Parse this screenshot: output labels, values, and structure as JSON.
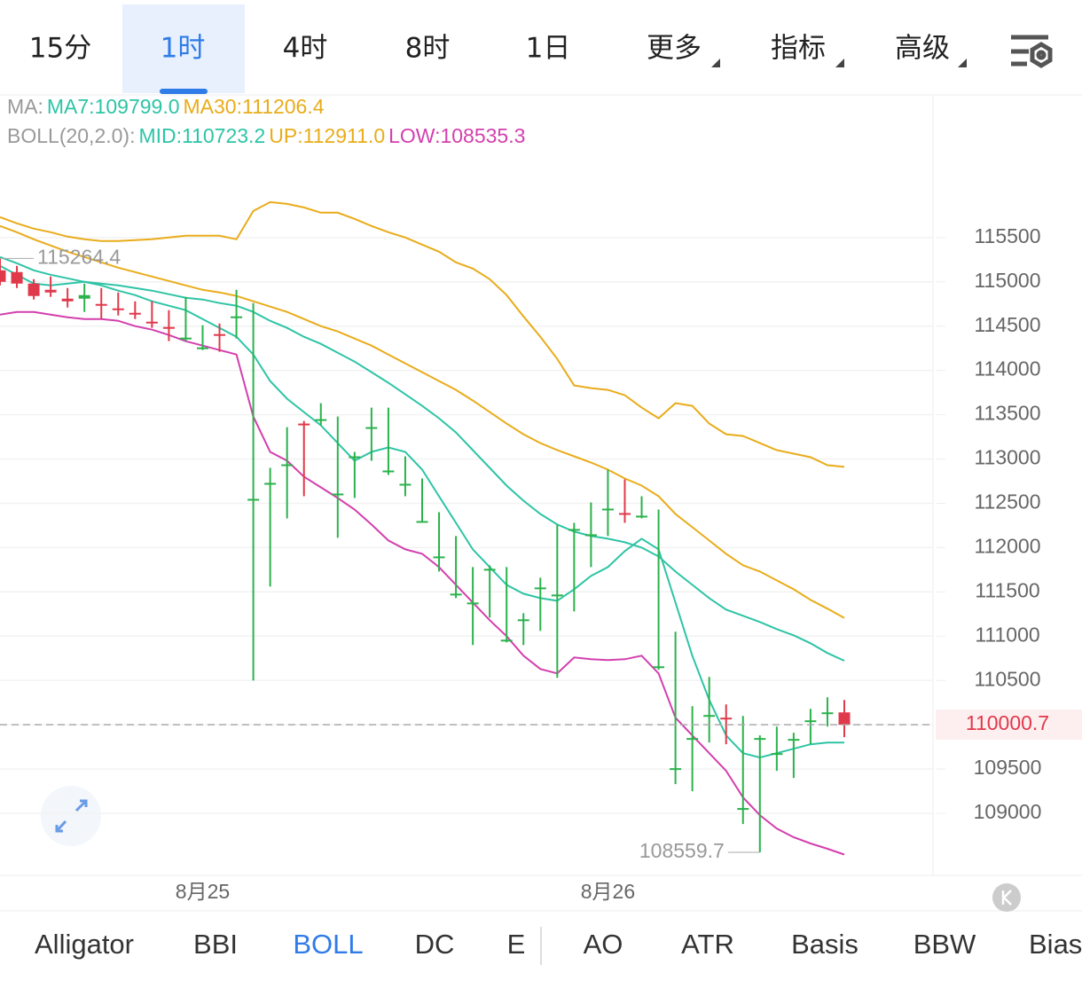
{
  "tabs": [
    "15分",
    "1时",
    "4时",
    "8时",
    "1日",
    "更多",
    "指标",
    "高级"
  ],
  "indicator_tabs": [
    "Alligator",
    "BBI",
    "BOLL",
    "DC",
    "E",
    "AO",
    "ATR",
    "Basis",
    "BBW",
    "Bias"
  ],
  "chart_data": {
    "type": "candlestick",
    "ma_label": "MA:",
    "boll_label": "BOLL(20,2.0):",
    "categories": [
      null,
      null,
      null,
      null,
      null,
      null,
      null,
      null,
      null,
      null,
      null,
      null,
      "8月25",
      null,
      null,
      null,
      null,
      null,
      null,
      null,
      null,
      null,
      null,
      null,
      null,
      null,
      null,
      null,
      null,
      null,
      null,
      null,
      null,
      null,
      null,
      null,
      "8月26",
      null,
      null,
      null,
      null,
      null,
      null,
      null,
      null,
      null,
      null,
      null,
      null,
      null,
      null
    ],
    "open": [
      115130,
      115110,
      114980,
      114910,
      114810,
      114810,
      114750,
      114700,
      114650,
      114550,
      114490,
      114370,
      114250,
      114410,
      114600,
      112550,
      112730,
      112940,
      113400,
      113440,
      112590,
      113030,
      113350,
      112860,
      112720,
      112300,
      111900,
      111470,
      111370,
      111740,
      110960,
      111190,
      111540,
      111470,
      112210,
      112150,
      112430,
      112390,
      112350,
      110650,
      109510,
      109850,
      110090,
      110080,
      109060,
      109850,
      109670,
      109830,
      110050,
      110140,
      110140
    ],
    "high": [
      115264.4,
      115180,
      115030,
      115060,
      114930,
      114980,
      114930,
      114880,
      114780,
      114780,
      114680,
      114830,
      114510,
      114530,
      114910,
      114760,
      112900,
      113360,
      113430,
      113630,
      113480,
      113080,
      113580,
      113580,
      113030,
      112780,
      112400,
      112130,
      111780,
      111800,
      111780,
      111260,
      111660,
      112260,
      112280,
      112510,
      112880,
      112770,
      112580,
      112430,
      111050,
      110210,
      110540,
      110230,
      110100,
      109880,
      109980,
      109910,
      110180,
      110310,
      110280
    ],
    "low": [
      114960,
      114930,
      114800,
      114830,
      114710,
      114660,
      114580,
      114620,
      114580,
      114480,
      114330,
      114330,
      114230,
      114210,
      114360,
      110500,
      111560,
      112330,
      112580,
      113380,
      112110,
      112560,
      112980,
      112820,
      112580,
      112280,
      111730,
      111430,
      110900,
      111210,
      110930,
      110900,
      111060,
      110530,
      111280,
      111780,
      112130,
      112280,
      112330,
      110620,
      109330,
      109250,
      109800,
      109780,
      108880,
      108559.7,
      109480,
      109400,
      109780,
      109980,
      109860
    ],
    "close": [
      115000,
      114980,
      114840,
      114880,
      114780,
      114850,
      114740,
      114690,
      114640,
      114530,
      114480,
      114370,
      114260,
      114400,
      114610,
      112550,
      112730,
      112940,
      113390,
      113450,
      112610,
      113030,
      113360,
      112870,
      112720,
      112300,
      111900,
      111480,
      111380,
      111760,
      110960,
      111190,
      111550,
      111470,
      112210,
      112150,
      112440,
      112380,
      112360,
      110660,
      109510,
      109850,
      110110,
      110060,
      109060,
      109850,
      109680,
      109840,
      110050,
      110140,
      110000.7
    ],
    "up_color": "#2bb24c",
    "down_color": "#e0394a",
    "series": [
      {
        "name": "MA7:109799.0",
        "color": "#2ec4a6",
        "values": [
          115180,
          115080,
          114980,
          114960,
          114980,
          115000,
          114960,
          114900,
          114850,
          114780,
          114730,
          114680,
          114580,
          114480,
          114380,
          114180,
          113880,
          113680,
          113530,
          113380,
          113180,
          112980,
          113080,
          113130,
          113080,
          112880,
          112580,
          112280,
          111980,
          111780,
          111580,
          111480,
          111430,
          111400,
          111530,
          111680,
          111780,
          111960,
          112100,
          111980,
          111380,
          110780,
          110280,
          109880,
          109680,
          109630,
          109680,
          109730,
          109780,
          109800,
          109799
        ]
      },
      {
        "name": "MA30:111206.4",
        "color": "#e9ac1a",
        "values": [
          115630,
          115560,
          115480,
          115410,
          115340,
          115280,
          115220,
          115160,
          115110,
          115060,
          115010,
          114960,
          114910,
          114880,
          114840,
          114780,
          114720,
          114660,
          114580,
          114500,
          114440,
          114360,
          114280,
          114180,
          114080,
          113980,
          113880,
          113780,
          113660,
          113530,
          113400,
          113280,
          113180,
          113100,
          113030,
          112960,
          112880,
          112780,
          112700,
          112580,
          112380,
          112230,
          112080,
          111930,
          111800,
          111730,
          111630,
          111530,
          111410,
          111310,
          111206.4
        ]
      },
      {
        "name": "MID:110723.2",
        "color": "#2ec4a6",
        "values": [
          115280,
          115210,
          115130,
          115080,
          115040,
          115000,
          114980,
          114960,
          114930,
          114900,
          114860,
          114820,
          114800,
          114760,
          114730,
          114660,
          114560,
          114480,
          114380,
          114300,
          114200,
          114100,
          113980,
          113860,
          113730,
          113600,
          113460,
          113300,
          113100,
          112900,
          112700,
          112530,
          112380,
          112260,
          112180,
          112130,
          112100,
          112060,
          112000,
          111900,
          111730,
          111580,
          111430,
          111300,
          111230,
          111160,
          111080,
          111010,
          110920,
          110810,
          110723.2
        ]
      },
      {
        "name": "UP:112911.0",
        "color": "#e9ac1a",
        "values": [
          115730,
          115660,
          115600,
          115560,
          115510,
          115480,
          115460,
          115460,
          115470,
          115480,
          115500,
          115520,
          115520,
          115520,
          115480,
          115800,
          115900,
          115880,
          115840,
          115780,
          115780,
          115710,
          115630,
          115560,
          115500,
          115420,
          115340,
          115220,
          115150,
          115030,
          114850,
          114610,
          114380,
          114130,
          113830,
          113800,
          113780,
          113720,
          113580,
          113460,
          113630,
          113600,
          113400,
          113280,
          113260,
          113180,
          113100,
          113060,
          113020,
          112930,
          112911
        ]
      },
      {
        "name": "LOW:108535.3",
        "color": "#d43fae",
        "values": [
          114630,
          114660,
          114660,
          114630,
          114600,
          114580,
          114580,
          114560,
          114500,
          114460,
          114400,
          114330,
          114280,
          114230,
          114180,
          113480,
          113080,
          112980,
          112800,
          112680,
          112560,
          112430,
          112260,
          112080,
          111980,
          111930,
          111780,
          111580,
          111380,
          111180,
          111000,
          110780,
          110630,
          110580,
          110760,
          110740,
          110730,
          110740,
          110780,
          110580,
          110080,
          109880,
          109680,
          109480,
          109180,
          108980,
          108830,
          108730,
          108660,
          108600,
          108535.3
        ]
      }
    ],
    "ylim": [
      108320,
      117100
    ],
    "yticks": [
      109000,
      109500,
      110000,
      110500,
      111000,
      111500,
      112000,
      112500,
      113000,
      113500,
      114000,
      114500,
      115000,
      115500
    ],
    "grid": true
  }
}
